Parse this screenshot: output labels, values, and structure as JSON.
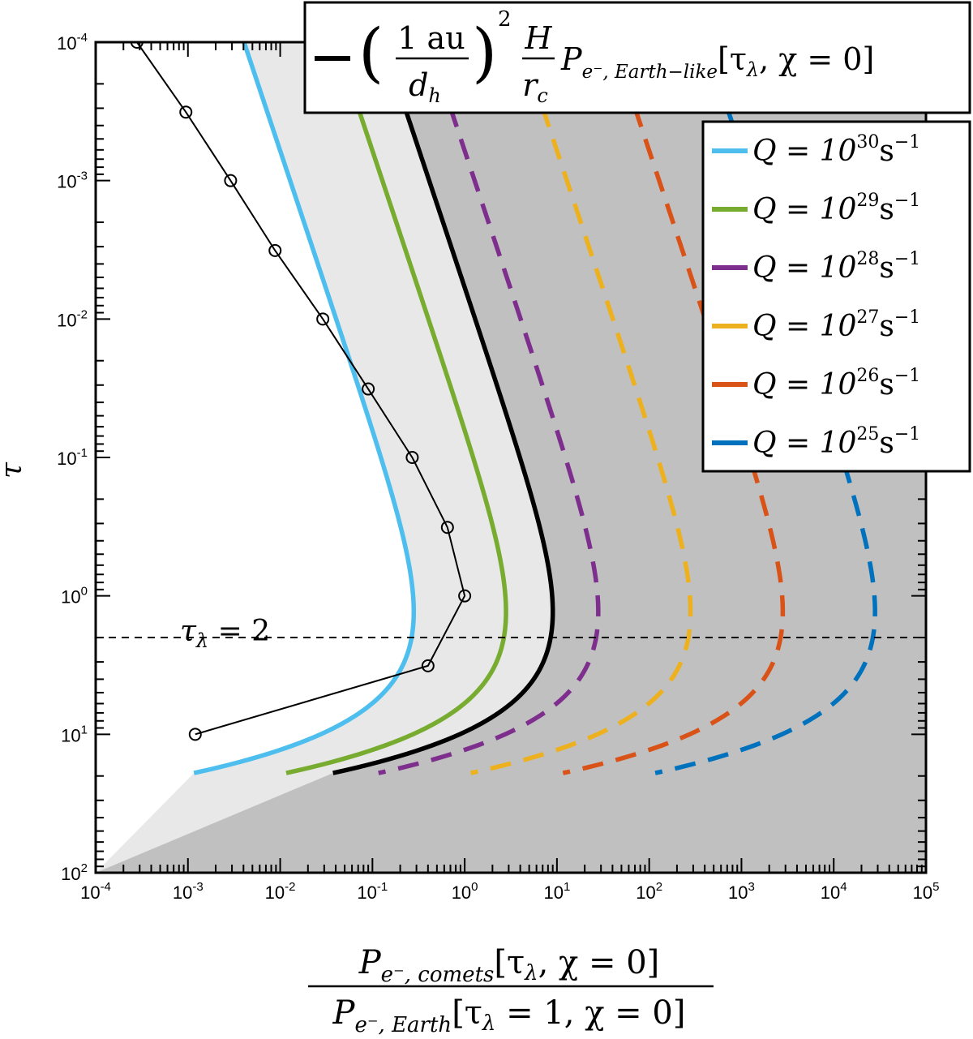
{
  "chart_data": {
    "type": "line",
    "title": "",
    "xlabel": "P_{e-, comets}[τλ, χ = 0] / P_{e-, Earth}[τλ = 1, χ = 0]",
    "xlabel_numerator": {
      "main": "P",
      "sub": "e⁻, comets",
      "args": "[τ",
      "args_sub": "λ",
      "args_tail": ", χ = 0]"
    },
    "xlabel_denominator": {
      "main": "P",
      "sub": "e⁻, Earth",
      "args": "[τ",
      "args_sub": "λ",
      "args_tail": " = 1, χ = 0]"
    },
    "ylabel": "τ",
    "x_scale": "log",
    "y_scale": "log",
    "y_reversed": true,
    "xlim": [
      0.0001,
      100000
    ],
    "ylim": [
      0.0001,
      100
    ],
    "x_tick_base": "10",
    "x_tick_exponents": [
      "-4",
      "-3",
      "-2",
      "-1",
      "0",
      "1",
      "2",
      "3",
      "4",
      "5"
    ],
    "y_tick_base": "10",
    "y_tick_exponents": [
      "-4",
      "-3",
      "-2",
      "-1",
      "0",
      "1",
      "2"
    ],
    "grid": false,
    "background_color": "#c0c0c0",
    "accessible_region_color": "#e8e8e8",
    "annotation": {
      "text": "τ",
      "sub": "λ",
      "tail": " = 2",
      "y": 2
    },
    "reference_line": {
      "label_main": "−",
      "y": 2
    },
    "earth_legend": {
      "open": "(",
      "num": "1 au",
      "den": "d",
      "den_sub": "h",
      "close": ")",
      "exp": "2",
      "frac_num": "H",
      "frac_den": "r",
      "frac_den_sub": "c",
      "p": "P",
      "p_sub": "e⁻, Earth−like",
      "args": "[τ",
      "args_sub": "λ",
      "args_tail": ", χ = 0]"
    },
    "legend_position": "top-right",
    "series": [
      {
        "name": "Q = 10^30 s^-1",
        "label_pre": "Q = 10",
        "label_exp": "30",
        "label_unit": "s",
        "label_unit_exp": "−1",
        "color": "#4dbeee",
        "log10Q": 30
      },
      {
        "name": "Q = 10^29 s^-1",
        "label_pre": "Q = 10",
        "label_exp": "29",
        "label_unit": "s",
        "label_unit_exp": "−1",
        "color": "#77ac30",
        "log10Q": 29
      },
      {
        "name": "Q = 10^28 s^-1",
        "label_pre": "Q = 10",
        "label_exp": "28",
        "label_unit": "s",
        "label_unit_exp": "−1",
        "color": "#7e2f8e",
        "log10Q": 28
      },
      {
        "name": "Q = 10^27 s^-1",
        "label_pre": "Q = 10",
        "label_exp": "27",
        "label_unit": "s",
        "label_unit_exp": "−1",
        "color": "#edb120",
        "log10Q": 27
      },
      {
        "name": "Q = 10^26 s^-1",
        "label_pre": "Q = 10",
        "label_exp": "26",
        "label_unit": "s",
        "label_unit_exp": "−1",
        "color": "#d95319",
        "log10Q": 26
      },
      {
        "name": "Q = 10^25 s^-1",
        "label_pre": "Q = 10",
        "label_exp": "25",
        "label_unit": "s",
        "label_unit_exp": "−1",
        "color": "#0072bd",
        "log10Q": 25
      }
    ],
    "earth_curve": {
      "color": "#000000",
      "peak_x": 9.0,
      "peak_y": 1.4
    },
    "reference_curve": {
      "color": "#000000",
      "points": [
        {
          "x": 0.00028,
          "y": 0.0001
        },
        {
          "x": 0.00095,
          "y": 0.00032
        },
        {
          "x": 0.0029,
          "y": 0.001
        },
        {
          "x": 0.0088,
          "y": 0.0032
        },
        {
          "x": 0.029,
          "y": 0.01
        },
        {
          "x": 0.09,
          "y": 0.032
        },
        {
          "x": 0.27,
          "y": 0.1
        },
        {
          "x": 0.65,
          "y": 0.32
        },
        {
          "x": 1.0,
          "y": 1.0
        },
        {
          "x": 0.4,
          "y": 3.2
        },
        {
          "x": 0.0012,
          "y": 10
        }
      ]
    }
  }
}
